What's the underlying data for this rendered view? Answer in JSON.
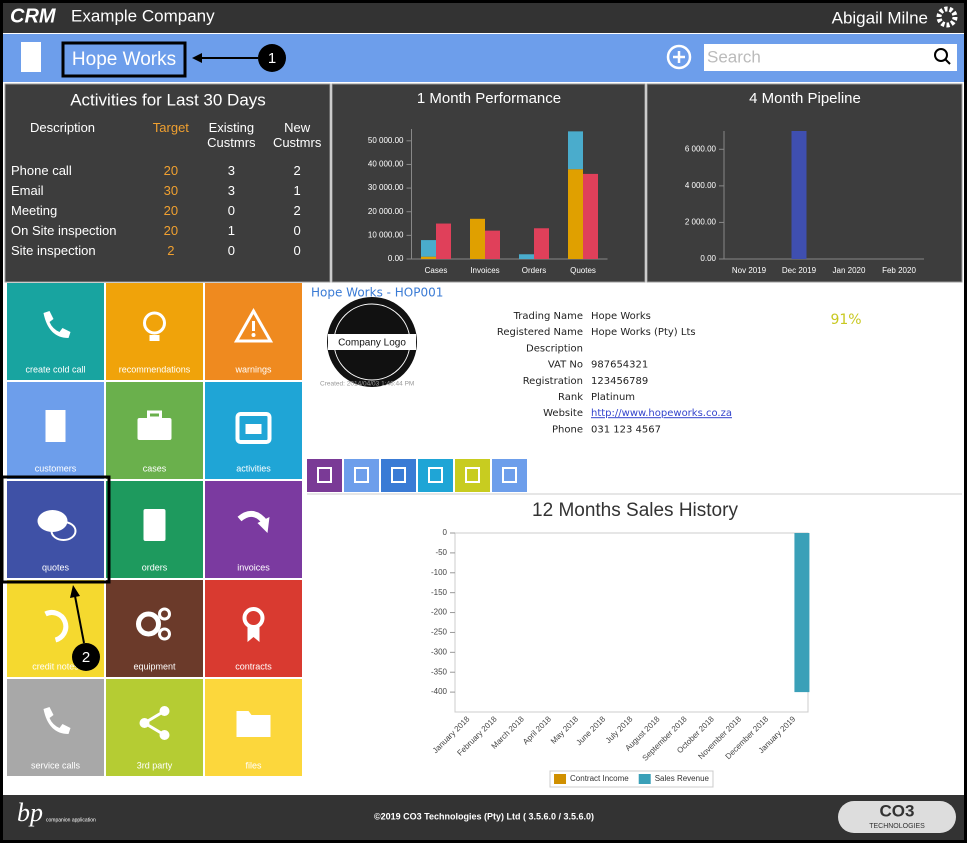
{
  "header": {
    "logo": "CRM",
    "company": "Example Company",
    "user": "Abigail Milne"
  },
  "toolbar": {
    "account": "Hope Works",
    "search_placeholder": "Search"
  },
  "annotations": [
    "1",
    "2"
  ],
  "activities": {
    "title": "Activities for Last 30 Days",
    "columns": [
      "Description",
      "Target",
      "Existing Custmrs",
      "New Custmrs"
    ],
    "rows": [
      [
        "Phone call",
        20,
        3,
        2
      ],
      [
        "Email",
        30,
        3,
        1
      ],
      [
        "Meeting",
        20,
        0,
        2
      ],
      [
        "On Site inspection",
        20,
        1,
        0
      ],
      [
        "Site inspection",
        2,
        0,
        0
      ]
    ]
  },
  "chart_data": [
    {
      "type": "bar",
      "title": "1 Month Performance",
      "categories": [
        "Cases",
        "Invoices",
        "Orders",
        "Quotes"
      ],
      "series": [
        {
          "color": "#e0a000",
          "stack": 0,
          "values": [
            1000,
            17000,
            0,
            38000
          ]
        },
        {
          "color": "#4aaccc",
          "stack": 0,
          "values": [
            7000,
            0,
            2000,
            16000
          ]
        },
        {
          "color": "#e0405a",
          "stack": 1,
          "values": [
            15000,
            12000,
            13000,
            36000
          ]
        }
      ],
      "ylim": [
        0,
        55000
      ],
      "yticks": [
        {
          "value": 0,
          "label": "0.00"
        },
        {
          "value": 10000,
          "label": "10 000.00"
        },
        {
          "value": 20000,
          "label": "20 000.00"
        },
        {
          "value": 30000,
          "label": "30 000.00"
        },
        {
          "value": 40000,
          "label": "40 000.00"
        },
        {
          "value": 50000,
          "label": "50 000.00"
        }
      ]
    },
    {
      "type": "bar",
      "title": "4 Month Pipeline",
      "categories": [
        "Nov 2019",
        "Dec 2019",
        "Jan 2020",
        "Feb 2020"
      ],
      "series": [
        {
          "color": "#3f4fb0",
          "values": [
            0,
            7000,
            0,
            0
          ]
        }
      ],
      "ylim": [
        0,
        7000
      ],
      "yticks": [
        {
          "value": 0,
          "label": "0.00"
        },
        {
          "value": 2000,
          "label": "2 000.00"
        },
        {
          "value": 4000,
          "label": "4 000.00"
        },
        {
          "value": 6000,
          "label": "6 000.00"
        }
      ]
    },
    {
      "type": "bar",
      "title": "12 Months Sales History",
      "categories": [
        "January 2018",
        "February 2018",
        "March 2018",
        "April 2018",
        "May 2018",
        "June 2018",
        "July 2018",
        "August 2018",
        "September 2018",
        "October 2018",
        "November 2018",
        "December 2018",
        "January 2019"
      ],
      "series": [
        {
          "name": "Contract Income",
          "color": "#d09000",
          "values": [
            0,
            0,
            0,
            0,
            0,
            0,
            0,
            0,
            0,
            0,
            0,
            0,
            0
          ]
        },
        {
          "name": "Sales Revenue",
          "color": "#3aa0b8",
          "values": [
            0,
            0,
            0,
            0,
            0,
            0,
            0,
            0,
            0,
            0,
            0,
            0,
            -400
          ]
        }
      ],
      "ylim": [
        -450,
        0
      ],
      "yticks": [
        0,
        -50,
        -100,
        -150,
        -200,
        -250,
        -300,
        -350,
        -400
      ],
      "legend": "bottom"
    }
  ],
  "tiles": [
    "create cold call",
    "recommendations",
    "warnings",
    "customers",
    "cases",
    "activities",
    "quotes",
    "orders",
    "invoices",
    "credit notes",
    "equipment",
    "contracts",
    "service calls",
    "3rd party",
    "files"
  ],
  "details": {
    "title": "Hope Works - HOP001",
    "logo": "Company Logo",
    "created": "Created: 2014/04/03 1:46:44 PM",
    "progress": "91%",
    "fields": [
      [
        "Trading Name",
        "Hope Works"
      ],
      [
        "Registered Name",
        "Hope Works (Pty) Lts"
      ],
      [
        "Description",
        ""
      ],
      [
        "VAT No",
        "987654321"
      ],
      [
        "Registration",
        "123456789"
      ],
      [
        "Rank",
        "Platinum"
      ],
      [
        "Website",
        "http://www.hopeworks.co.za"
      ],
      [
        "Phone",
        "031 123 4567"
      ]
    ]
  },
  "footer": {
    "logo_left": "bp",
    "tagline": "companion application",
    "copyright": "©2019 CO3 Technologies (Pty) Ltd ( 3.5.6.0 / 3.5.6.0)",
    "logo_right": "CO3",
    "logo_right_sub": "TECHNOLOGIES"
  }
}
